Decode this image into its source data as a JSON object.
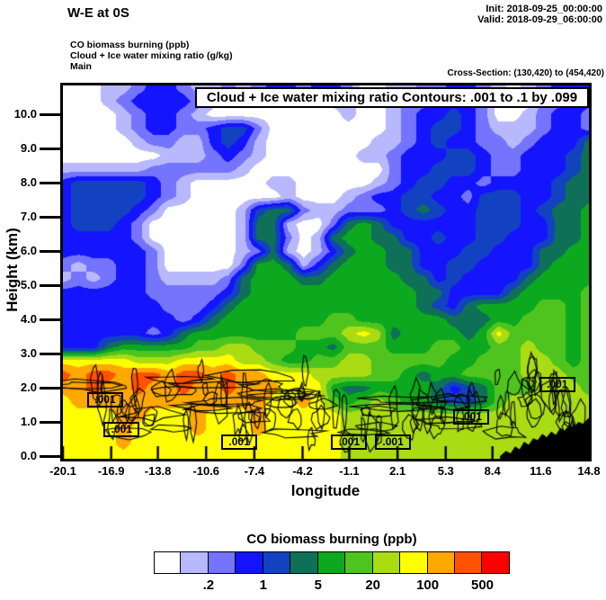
{
  "header": {
    "title": "W-E at 0S",
    "init": "Init: 2018-09-25_00:00:00",
    "valid": "Valid: 2018-09-29_06:00:00",
    "field_lines": [
      "CO biomass burning   (ppb)",
      "Cloud + Ice water mixing ratio   (g/kg)",
      "Main"
    ],
    "cross_section": "Cross-Section: (130,420) to (454,420)"
  },
  "chart_data": {
    "type": "heatmap",
    "title": "Cloud + Ice water mixing ratio Contours: .001 to .1 by .099",
    "xlabel": "longitude",
    "ylabel": "Height (km)",
    "shaded_field": "CO biomass burning (ppb)",
    "contour_field": "Cloud + Ice water mixing ratio (g/kg)",
    "xlim": [
      -20.1,
      14.8
    ],
    "ylim": [
      0,
      10.9
    ],
    "x_ticks": [
      -20.1,
      -16.9,
      -13.8,
      -10.6,
      -7.4,
      -4.2,
      -1.1,
      2.1,
      5.3,
      8.4,
      11.6,
      14.8
    ],
    "x_tick_labels": [
      "-20.1",
      "-16.9",
      "-13.8",
      "-10.6",
      "-7.4",
      "-4.2",
      "-1.1",
      "2.1",
      "5.3",
      "8.4",
      "11.6",
      "14.8"
    ],
    "y_ticks": [
      0,
      1,
      2,
      3,
      4,
      5,
      6,
      7,
      8,
      9,
      10
    ],
    "y_tick_labels": [
      "0.0",
      "1.0",
      "2.0",
      "3.0",
      "4.0",
      "5.0",
      "6.0",
      "7.0",
      "8.0",
      "9.0",
      "10.0"
    ],
    "palette": [
      "#FFFFFF",
      "#B8B8FF",
      "#7474FF",
      "#1414FF",
      "#1242C0",
      "#0E7056",
      "#0CA81E",
      "#50C41E",
      "#AADC14",
      "#FFFF00",
      "#FFA800",
      "#FF5200",
      "#FF0000"
    ],
    "grid": {
      "nx": 36,
      "ny": 28,
      "lon_min": -20.1,
      "lon_max": 14.8,
      "h_top": 10.8,
      "h_step": 0.4,
      "levels_rows_top_to_bottom": [
        "000112332112123323320011223321012333",
        "000123333211110000110012233320002233",
        "000012332100000000010012334320012332",
        "000012332234420000000012344321112332",
        "000001221134310000000112343322123335",
        "000000011123210000001123334432233345",
        "111111222222100000000023344432233345",
        "344444321000001100000123443323333455",
        "344444321000000100012334433244433455",
        "344443200000145521122234543344434556",
        "344432000000155100256533333344433556",
        "333332000000155201566553343344333556",
        "333333200000125101356655333443335566",
        "212233200000266513566655334433335666",
        "121233211112566655666665534333356666",
        "333333222223566666666666553333566667",
        "333333322235666666666666543566667767",
        "333333332356666666776666665556677767",
        "333333235666666677789856666569777767",
        "333566666778877766577766677667787767",
        "999998889999887667788777776677788767",
        "BABBABBABBABAA9998888776566777788877",
        "AABAABAABAABAAA999655666653457778887",
        "9AAAAAAAAAAAAA99A9767876654457888888",
        "9999AA999A999A9999988888888888888888",
        "9999A9999A999A9999988888888888888888",
        "9999A9999999999999988888888888888888",
        "999999999999999999988888888888888888"
      ]
    },
    "terrain_profile": [
      [
        8.9,
        0.0
      ],
      [
        9.3,
        0.15
      ],
      [
        9.6,
        0.08
      ],
      [
        9.9,
        0.28
      ],
      [
        10.2,
        0.2
      ],
      [
        10.5,
        0.42
      ],
      [
        10.8,
        0.33
      ],
      [
        11.1,
        0.52
      ],
      [
        11.4,
        0.47
      ],
      [
        11.7,
        0.65
      ],
      [
        12.0,
        0.55
      ],
      [
        12.3,
        0.72
      ],
      [
        12.6,
        0.62
      ],
      [
        12.9,
        0.82
      ],
      [
        13.2,
        0.75
      ],
      [
        13.5,
        0.92
      ],
      [
        13.8,
        0.85
      ],
      [
        14.1,
        1.0
      ],
      [
        14.4,
        0.95
      ],
      [
        14.8,
        1.12
      ]
    ],
    "cloud_contour_label": ".001",
    "contour_label_positions": [
      {
        "lon": -17.3,
        "h": 1.65
      },
      {
        "lon": -16.2,
        "h": 0.78
      },
      {
        "lon": -8.4,
        "h": 0.4
      },
      {
        "lon": -1.1,
        "h": 0.4
      },
      {
        "lon": 1.8,
        "h": 0.4
      },
      {
        "lon": 7.0,
        "h": 1.15
      },
      {
        "lon": 12.7,
        "h": 2.1
      }
    ],
    "squiggle_clusters": [
      {
        "lon_min": -18.6,
        "lon_max": -4.0,
        "h_min": 0.6,
        "h_max": 2.5,
        "count": 55
      },
      {
        "lon_min": -4.0,
        "lon_max": 2.2,
        "h_min": 0.4,
        "h_max": 1.5,
        "count": 16
      },
      {
        "lon_min": 2.4,
        "lon_max": 4.2,
        "h_min": 0.8,
        "h_max": 1.8,
        "count": 7
      },
      {
        "lon_min": 4.4,
        "lon_max": 7.6,
        "h_min": 0.5,
        "h_max": 1.8,
        "count": 12
      },
      {
        "lon_min": 8.6,
        "lon_max": 14.6,
        "h_min": 0.6,
        "h_max": 2.5,
        "count": 28
      }
    ]
  },
  "legend": {
    "title": "CO biomass burning  (ppb)",
    "tick_labels": [
      ".2",
      "1",
      "5",
      "20",
      "100",
      "500"
    ],
    "tick_boundary_indices": [
      2,
      4,
      6,
      8,
      10,
      12
    ]
  }
}
